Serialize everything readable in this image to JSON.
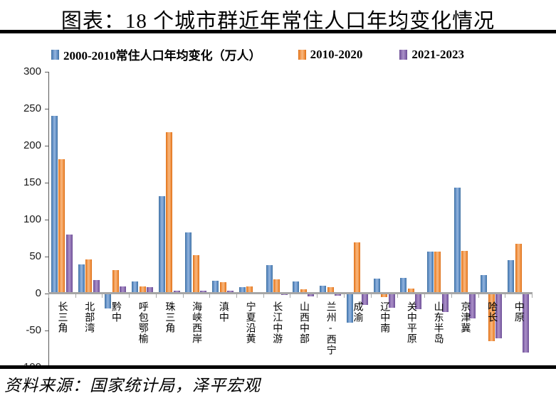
{
  "page": {
    "title": "图表：18 个城市群近年常住人口年均变化情况",
    "source": "资料来源：国家统计局，泽平宏观"
  },
  "chart_data": {
    "type": "bar",
    "title": "图表：18 个城市群近年常住人口年均变化情况",
    "unit": "万人",
    "legend_position": "top",
    "grid": false,
    "ylim": [
      -100,
      300
    ],
    "yticks": [
      300,
      250,
      200,
      150,
      100,
      50,
      0,
      -50,
      -100
    ],
    "categories": [
      "长三角",
      "北部湾",
      "黔中",
      "呼包鄂榆",
      "珠三角",
      "海峡西岸",
      "滇中",
      "宁夏沿黄",
      "长江中游",
      "山西中部",
      "兰州-西宁",
      "成渝",
      "辽中南",
      "关中平原",
      "山东半岛",
      "京津冀",
      "哈长",
      "中原"
    ],
    "series": [
      {
        "name": "2000-2010常住人口年均变化（万人）",
        "color": "#4f81bd",
        "values": [
          240,
          39,
          -20,
          16,
          132,
          83,
          17,
          9,
          38,
          16,
          11,
          -39,
          20,
          21,
          57,
          143,
          25,
          45
        ]
      },
      {
        "name": "2010-2020",
        "color": "#f79646",
        "values": [
          182,
          46,
          32,
          10,
          218,
          52,
          15,
          10,
          19,
          6,
          9,
          69,
          -5,
          7,
          57,
          58,
          -64,
          67
        ]
      },
      {
        "name": "2021-2023",
        "color": "#8064a2",
        "values": [
          80,
          18,
          10,
          9,
          4,
          4,
          4,
          2,
          -2,
          -4,
          -3,
          -15,
          -19,
          -21,
          -25,
          -34,
          -61,
          -80
        ]
      }
    ]
  }
}
